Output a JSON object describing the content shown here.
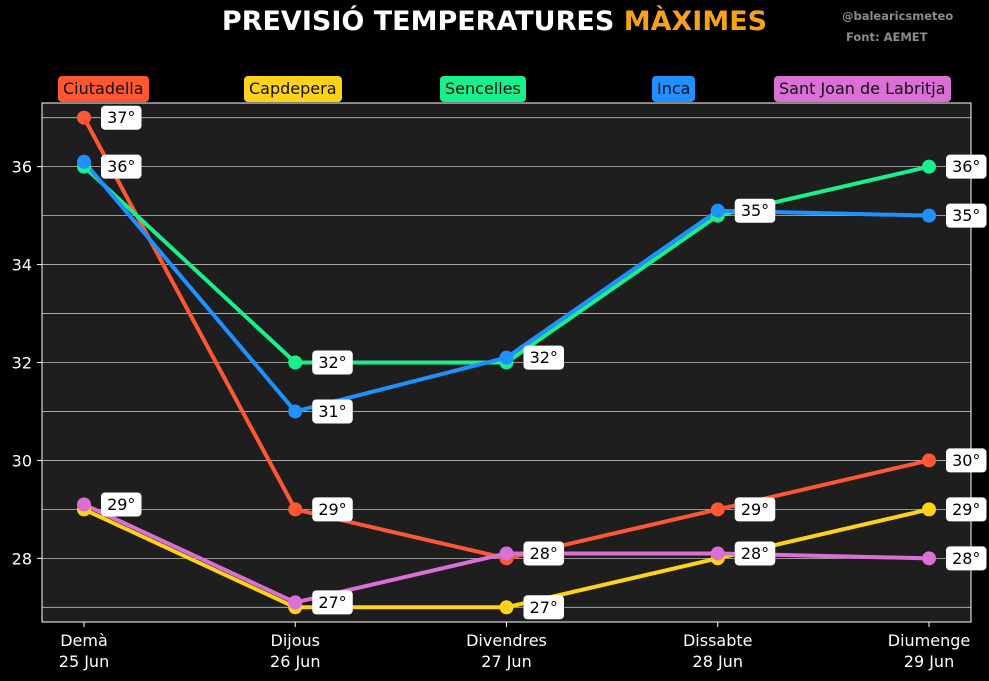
{
  "header": {
    "title_main": "PREVISIÓ TEMPERATURES",
    "title_accent": "MÀXIMES",
    "handle": "@balearicsmeteo",
    "source": "Font: AEMET"
  },
  "colors": {
    "background": "#000000",
    "plot_background": "#1e1e1e",
    "accent": "#f4a21c"
  },
  "chart_data": {
    "type": "line",
    "title": "PREVISIÓ TEMPERATURES MÀXIMES",
    "xlabel": "",
    "ylabel": "",
    "categories": [
      [
        "Demà",
        "25 Jun"
      ],
      [
        "Dijous",
        "26 Jun"
      ],
      [
        "Divendres",
        "27 Jun"
      ],
      [
        "Dissabte",
        "28 Jun"
      ],
      [
        "Diumenge",
        "29 Jun"
      ]
    ],
    "ylim": [
      26.7,
      37.3
    ],
    "yticks": [
      28,
      30,
      32,
      34,
      36
    ],
    "grid": true,
    "legend": "top",
    "label_suffix": "°",
    "series": [
      {
        "name": "Ciutadella",
        "color": "#ff5733",
        "values": [
          37,
          29,
          28,
          29,
          30
        ],
        "labels": [
          1,
          1,
          0,
          1,
          1
        ]
      },
      {
        "name": "Capdepera",
        "color": "#ffd21a",
        "values": [
          29,
          27,
          27,
          28,
          29
        ],
        "labels": [
          0,
          0,
          1,
          0,
          1
        ]
      },
      {
        "name": "Sencelles",
        "color": "#19f08c",
        "values": [
          36,
          32,
          32,
          35,
          36
        ],
        "labels": [
          1,
          1,
          0,
          0,
          1
        ]
      },
      {
        "name": "Inca",
        "color": "#1e90ff",
        "values": [
          36.1,
          31,
          32.1,
          35.1,
          35
        ],
        "labels": [
          0,
          1,
          1,
          1,
          1
        ]
      },
      {
        "name": "Sant Joan de Labritja",
        "color": "#da70d6",
        "values": [
          29.1,
          27.1,
          28.1,
          28.1,
          28
        ],
        "labels": [
          1,
          1,
          1,
          1,
          1
        ]
      }
    ]
  }
}
